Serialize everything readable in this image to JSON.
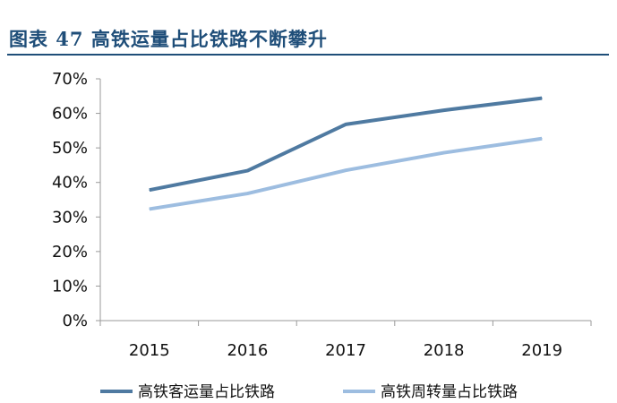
{
  "figure": {
    "title": "图表 47 高铁运量占比铁路不断攀升"
  },
  "chart_data": {
    "type": "line",
    "title": "",
    "xlabel": "",
    "ylabel": "",
    "x": [
      "2015",
      "2016",
      "2017",
      "2018",
      "2019"
    ],
    "ylim": [
      0,
      70
    ],
    "y_ticks": [
      0,
      10,
      20,
      30,
      40,
      50,
      60,
      70
    ],
    "y_tick_labels": [
      "0%",
      "10%",
      "20%",
      "30%",
      "40%",
      "50%",
      "60%",
      "70%"
    ],
    "grid": false,
    "legend_position": "bottom",
    "series": [
      {
        "name": "高铁客运量占比铁路",
        "values": [
          37.8,
          43.4,
          56.8,
          60.9,
          64.4
        ],
        "color": "#4f7aa1"
      },
      {
        "name": "高铁周转量占比铁路",
        "values": [
          32.3,
          36.8,
          43.5,
          48.6,
          52.7
        ],
        "color": "#9dbde0"
      }
    ]
  }
}
